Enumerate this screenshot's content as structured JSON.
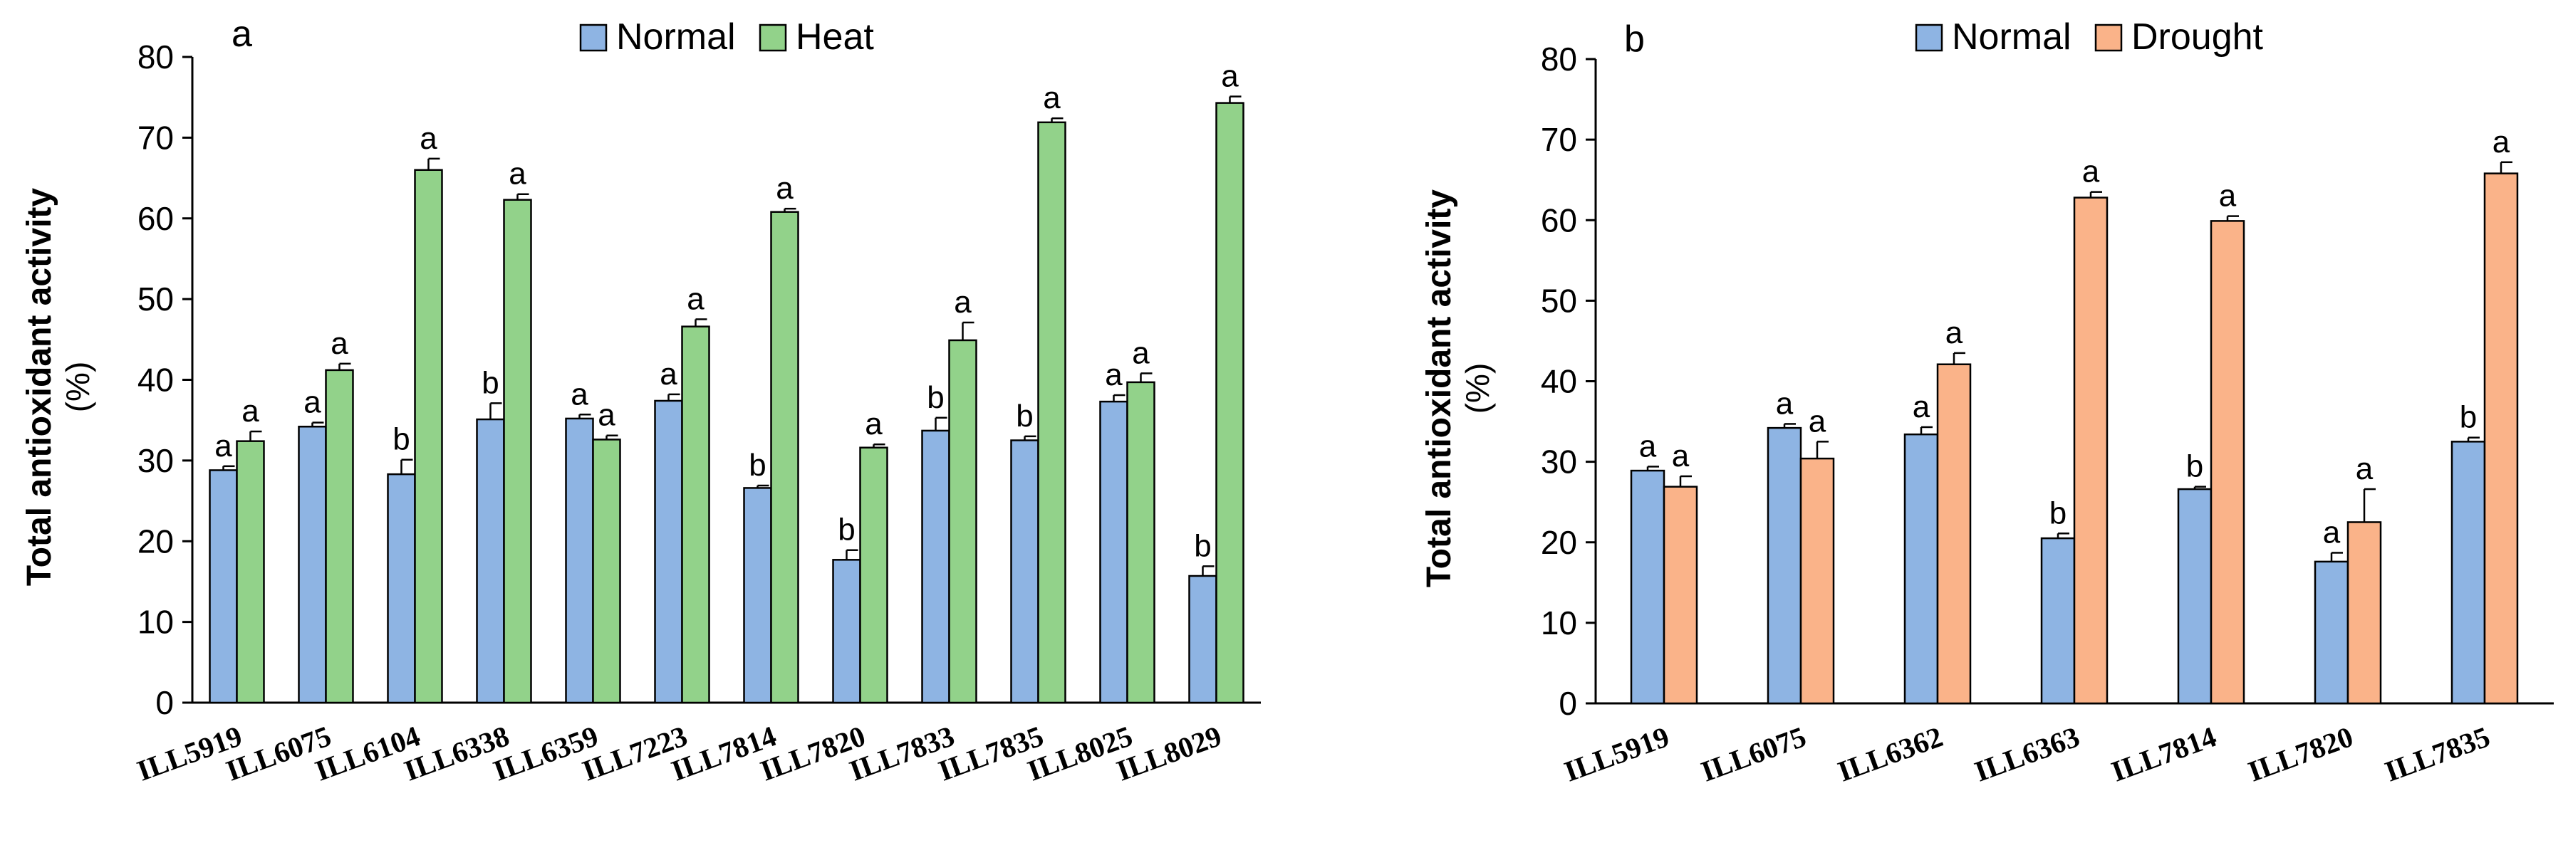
{
  "chart_data": [
    {
      "type": "bar",
      "panel_label": "a",
      "ylabel": "Total antioxidant activity",
      "ylabel_unit": "(%)",
      "ylim": [
        0,
        80
      ],
      "yticks": [
        0,
        10,
        20,
        30,
        40,
        50,
        60,
        70,
        80
      ],
      "legend_position": "top-center",
      "categories": [
        "ILL5919",
        "ILL6075",
        "ILL6104",
        "ILL6338",
        "ILL6359",
        "ILL7223",
        "ILL7814",
        "ILL7820",
        "ILL7833",
        "ILL7835",
        "ILL8025",
        "ILL8029"
      ],
      "series": [
        {
          "name": "Normal",
          "color": "#8eb4e3",
          "values": [
            28.8,
            34.2,
            28.3,
            35.1,
            35.2,
            37.4,
            26.6,
            17.7,
            33.7,
            32.5,
            37.3,
            15.7
          ],
          "errors": [
            0.5,
            0.5,
            1.8,
            2.0,
            0.5,
            0.8,
            0.3,
            1.2,
            1.6,
            0.5,
            0.8,
            1.2
          ],
          "letters": [
            "a",
            "a",
            "b",
            "b",
            "a",
            "a",
            "b",
            "b",
            "b",
            "b",
            "a",
            "b"
          ]
        },
        {
          "name": "Heat",
          "color": "#92d28a",
          "values": [
            32.4,
            41.2,
            66.0,
            62.3,
            32.6,
            46.6,
            60.8,
            31.6,
            44.9,
            71.9,
            39.7,
            74.3
          ],
          "errors": [
            1.2,
            0.8,
            1.4,
            0.7,
            0.5,
            0.9,
            0.4,
            0.4,
            2.2,
            0.5,
            1.1,
            0.8
          ],
          "letters": [
            "a",
            "a",
            "a",
            "a",
            "a",
            "a",
            "a",
            "a",
            "a",
            "a",
            "a",
            "a"
          ]
        }
      ]
    },
    {
      "type": "bar",
      "panel_label": "b",
      "ylabel": "Total antioxidant activity",
      "ylabel_unit": "(%)",
      "ylim": [
        0,
        80
      ],
      "yticks": [
        0,
        10,
        20,
        30,
        40,
        50,
        60,
        70,
        80
      ],
      "legend_position": "top-center",
      "categories": [
        "ILL5919",
        "ILL6075",
        "ILL6362",
        "ILL6363",
        "ILL7814",
        "ILL7820",
        "ILL7835"
      ],
      "series": [
        {
          "name": "Normal",
          "color": "#8eb4e3",
          "values": [
            28.9,
            34.2,
            33.4,
            20.5,
            26.6,
            17.6,
            32.5
          ],
          "errors": [
            0.5,
            0.5,
            0.9,
            0.6,
            0.3,
            1.1,
            0.5
          ],
          "letters": [
            "a",
            "a",
            "a",
            "b",
            "b",
            "a",
            "b"
          ]
        },
        {
          "name": "Drought",
          "color": "#fab389",
          "values": [
            26.9,
            30.4,
            42.1,
            62.8,
            59.9,
            22.5,
            65.8
          ],
          "errors": [
            1.3,
            2.1,
            1.4,
            0.7,
            0.6,
            4.1,
            1.4
          ],
          "letters": [
            "a",
            "a",
            "a",
            "a",
            "a",
            "a",
            "a"
          ]
        }
      ]
    }
  ]
}
